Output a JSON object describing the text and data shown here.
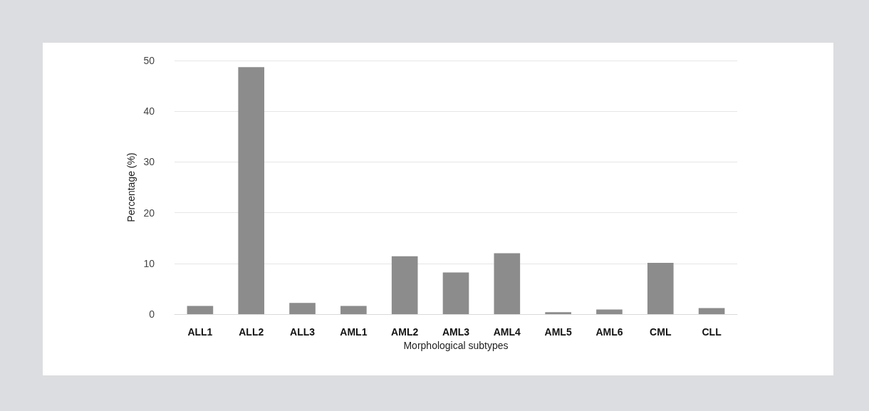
{
  "chart_data": {
    "type": "bar",
    "xlabel": "Morphological subtypes",
    "ylabel": "Percentage (%)",
    "categories": [
      "ALL1",
      "ALL2",
      "ALL3",
      "AML1",
      "AML2",
      "AML3",
      "AML4",
      "AML5",
      "AML6",
      "CML",
      "CLL"
    ],
    "values": [
      1.6,
      48.7,
      2.2,
      1.6,
      11.4,
      8.2,
      12.0,
      0.4,
      0.9,
      10.1,
      1.2
    ],
    "color": "#8c8c8c",
    "ylim": [
      0,
      50
    ],
    "yticks": [
      0,
      10,
      20,
      30,
      40,
      50
    ],
    "grid": "y"
  }
}
